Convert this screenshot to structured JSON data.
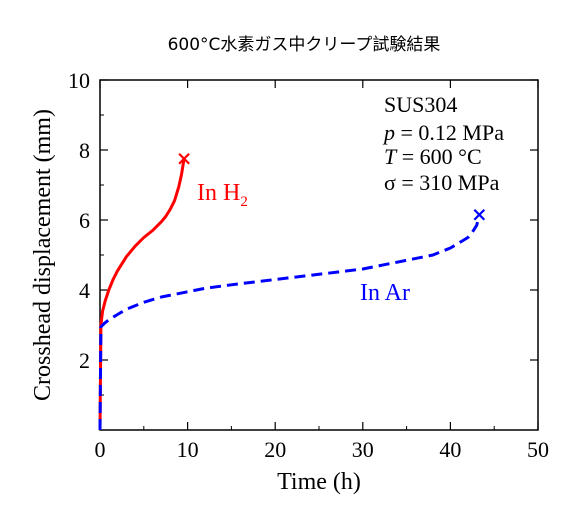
{
  "title": "600°C水素ガス中クリープ試験結果",
  "chart_data": {
    "type": "line",
    "xlabel": "Time (h)",
    "ylabel": "Crosshead displacement (mm)",
    "xlim": [
      0,
      50
    ],
    "ylim": [
      0,
      10
    ],
    "x_ticks": [
      0,
      10,
      20,
      30,
      40,
      50
    ],
    "y_ticks": [
      2,
      4,
      6,
      8,
      10
    ],
    "grid": false,
    "conditions": {
      "material": "SUS304",
      "p_var": "p",
      "p_value": " = 0.12 MPa",
      "T_var": "T",
      "T_value": " = 600 °C",
      "sigma": "σ = 310 MPa"
    },
    "series": [
      {
        "label": "In H",
        "label_sub": "2",
        "color": "#ff0000",
        "style": "solid",
        "end_marker": "x",
        "x": [
          0,
          0.1,
          0.3,
          0.6,
          1.0,
          1.5,
          2.0,
          2.5,
          3.0,
          4.0,
          5.0,
          6.0,
          7.0,
          7.5,
          8.0,
          8.5,
          9.0,
          9.3,
          9.5,
          9.6
        ],
        "y": [
          0,
          3.0,
          3.4,
          3.7,
          4.0,
          4.3,
          4.55,
          4.75,
          4.95,
          5.25,
          5.5,
          5.7,
          5.95,
          6.1,
          6.3,
          6.55,
          6.95,
          7.3,
          7.6,
          7.75
        ]
      },
      {
        "label": "In Ar",
        "color": "#0000ff",
        "style": "dashed",
        "end_marker": "x",
        "x": [
          0,
          0.1,
          0.5,
          1,
          2,
          3,
          5,
          7,
          10,
          12,
          15,
          20,
          25,
          30,
          35,
          38,
          40,
          41,
          42,
          42.5,
          43,
          43.3
        ],
        "y": [
          0,
          2.95,
          3.05,
          3.15,
          3.3,
          3.45,
          3.65,
          3.8,
          3.95,
          4.05,
          4.15,
          4.3,
          4.45,
          4.6,
          4.85,
          5.0,
          5.2,
          5.35,
          5.5,
          5.65,
          5.85,
          6.15
        ]
      }
    ]
  }
}
